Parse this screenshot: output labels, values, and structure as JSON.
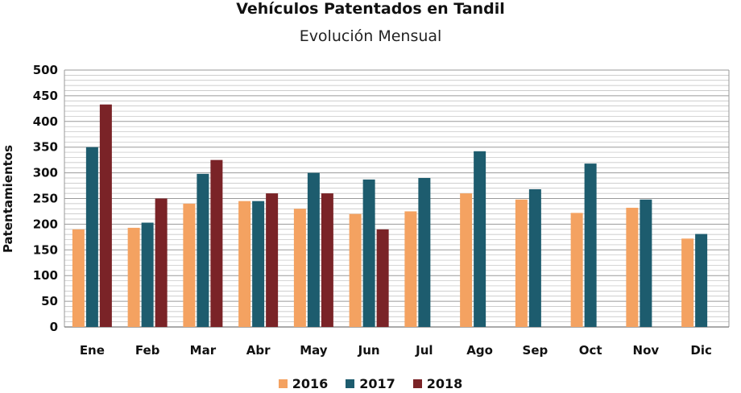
{
  "chart_data": {
    "type": "bar",
    "title": "Vehículos Patentados en Tandil",
    "subtitle": "Evolución Mensual",
    "ylabel": "Patentamientos",
    "xlabel": "",
    "ylim": [
      0,
      500
    ],
    "yticks": [
      "0",
      "50",
      "100",
      "150",
      "200",
      "250",
      "300",
      "350",
      "400",
      "450",
      "500"
    ],
    "grid": true,
    "legend_position": "bottom",
    "categories": [
      "Ene",
      "Feb",
      "Mar",
      "Abr",
      "May",
      "Jun",
      "Jul",
      "Ago",
      "Sep",
      "Oct",
      "Nov",
      "Dic"
    ],
    "series": [
      {
        "name": "2016",
        "color": "#F4A261",
        "values": [
          190,
          193,
          240,
          245,
          230,
          220,
          225,
          260,
          248,
          222,
          232,
          172
        ]
      },
      {
        "name": "2017",
        "color": "#1D5C6E",
        "values": [
          350,
          203,
          298,
          245,
          300,
          287,
          290,
          342,
          268,
          318,
          248,
          181
        ]
      },
      {
        "name": "2018",
        "color": "#7A2327",
        "values": [
          433,
          250,
          325,
          260,
          260,
          190,
          null,
          null,
          null,
          null,
          null,
          null
        ]
      }
    ]
  }
}
